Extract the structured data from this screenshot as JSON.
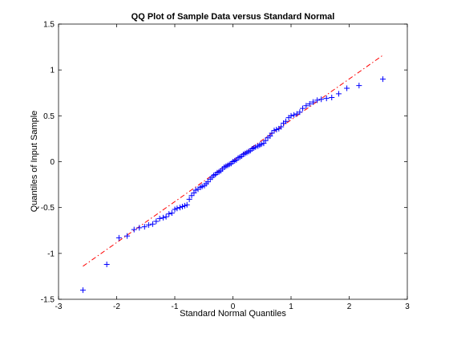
{
  "chart_data": {
    "type": "scatter",
    "title": "QQ Plot of Sample Data versus Standard Normal",
    "xlabel": "Standard Normal Quantiles",
    "ylabel": "Quantiles of Input Sample",
    "xlim": [
      -3,
      3
    ],
    "ylim": [
      -1.5,
      1.5
    ],
    "xticks": [
      "-3",
      "-2",
      "-1",
      "0",
      "1",
      "2",
      "3"
    ],
    "yticks": [
      "-1.5",
      "-1",
      "-0.5",
      "0",
      "0.5",
      "1",
      "1.5"
    ],
    "grid": false,
    "legend": "none",
    "marker": "+",
    "marker_color": "#0000ff",
    "reference_line": {
      "style": "dash-dot",
      "color": "#ff0000",
      "x": [
        -2.58,
        2.58
      ],
      "y": [
        -1.14,
        1.16
      ]
    },
    "series": [
      {
        "x": [
          -2.58,
          -2.17,
          -1.96,
          -1.82,
          -1.7,
          -1.61,
          -1.52,
          -1.45,
          -1.38,
          -1.32,
          -1.26,
          -1.2,
          -1.15,
          -1.1,
          -1.05,
          -1.0,
          -0.96,
          -0.91,
          -0.87,
          -0.83,
          -0.79,
          -0.75,
          -0.71,
          -0.67,
          -0.64,
          -0.6,
          -0.56,
          -0.53,
          -0.49,
          -0.46,
          -0.43,
          -0.39,
          -0.36,
          -0.33,
          -0.3,
          -0.27,
          -0.24,
          -0.21,
          -0.18,
          -0.15,
          -0.12,
          -0.09,
          -0.06,
          -0.03,
          0.0,
          0.03,
          0.06,
          0.09,
          0.12,
          0.15,
          0.18,
          0.21,
          0.24,
          0.27,
          0.3,
          0.33,
          0.36,
          0.39,
          0.43,
          0.46,
          0.49,
          0.53,
          0.56,
          0.6,
          0.64,
          0.67,
          0.71,
          0.75,
          0.79,
          0.83,
          0.87,
          0.91,
          0.96,
          1.0,
          1.05,
          1.1,
          1.15,
          1.2,
          1.26,
          1.32,
          1.38,
          1.45,
          1.52,
          1.61,
          1.7,
          1.82,
          1.96,
          2.17,
          2.58
        ],
        "y": [
          -1.4,
          -1.12,
          -0.83,
          -0.81,
          -0.74,
          -0.72,
          -0.71,
          -0.69,
          -0.68,
          -0.65,
          -0.62,
          -0.61,
          -0.6,
          -0.57,
          -0.56,
          -0.52,
          -0.51,
          -0.5,
          -0.49,
          -0.48,
          -0.47,
          -0.41,
          -0.37,
          -0.34,
          -0.31,
          -0.3,
          -0.28,
          -0.27,
          -0.26,
          -0.24,
          -0.22,
          -0.19,
          -0.17,
          -0.15,
          -0.14,
          -0.12,
          -0.11,
          -0.1,
          -0.08,
          -0.06,
          -0.05,
          -0.04,
          -0.03,
          -0.02,
          0.0,
          0.01,
          0.02,
          0.04,
          0.05,
          0.06,
          0.08,
          0.09,
          0.1,
          0.11,
          0.12,
          0.14,
          0.15,
          0.16,
          0.17,
          0.18,
          0.19,
          0.2,
          0.23,
          0.26,
          0.28,
          0.31,
          0.34,
          0.35,
          0.36,
          0.38,
          0.42,
          0.44,
          0.48,
          0.5,
          0.51,
          0.52,
          0.54,
          0.58,
          0.61,
          0.63,
          0.65,
          0.67,
          0.68,
          0.69,
          0.7,
          0.74,
          0.8,
          0.83,
          0.9
        ]
      }
    ]
  }
}
